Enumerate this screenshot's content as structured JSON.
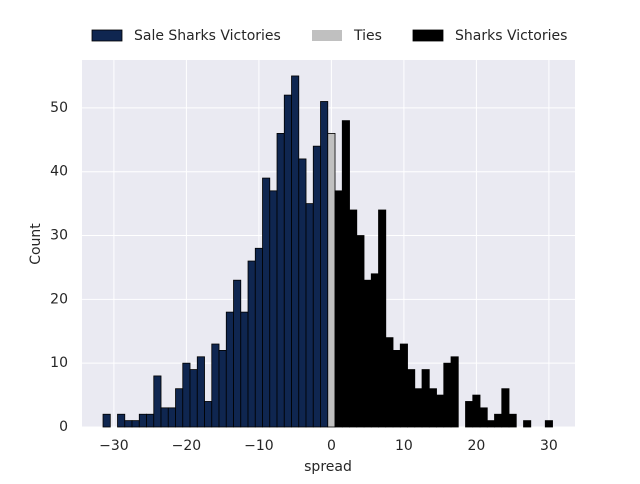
{
  "chart_data": {
    "type": "histogram",
    "xlabel": "spread",
    "ylabel": "Count",
    "xlim": [
      -34.4,
      33.6
    ],
    "ylim": [
      0,
      57.5
    ],
    "xticks": [
      {
        "value": -30,
        "label": "−30"
      },
      {
        "value": -20,
        "label": "−20"
      },
      {
        "value": -10,
        "label": "−10"
      },
      0,
      10,
      20,
      30
    ],
    "yticks": [
      0,
      10,
      20,
      30,
      40,
      50
    ],
    "grid": true,
    "legend": "top",
    "series": [
      {
        "name": "Sale Sharks Victories",
        "color": "#0f2650",
        "bins": [
          -31.5,
          -30.5,
          -29.5,
          -28.5,
          -27.5,
          -26.5,
          -25.5,
          -24.5,
          -23.5,
          -22.5,
          -21.5,
          -20.5,
          -19.5,
          -18.5,
          -17.5,
          -16.5,
          -15.5,
          -14.5,
          -13.5,
          -12.5,
          -11.5,
          -10.5,
          -9.5,
          -8.5,
          -7.5,
          -6.5,
          -5.5,
          -4.5,
          -3.5,
          -2.5,
          -1.5,
          -0.5
        ],
        "values": [
          2,
          0,
          2,
          1,
          1,
          2,
          2,
          8,
          3,
          3,
          6,
          10,
          9,
          11,
          4,
          13,
          12,
          18,
          23,
          18,
          26,
          28,
          39,
          37,
          46,
          52,
          55,
          42,
          35,
          44,
          51
        ]
      },
      {
        "name": "Ties",
        "color": "#c0c0c0",
        "bins": [
          -0.5,
          0.5
        ],
        "values": [
          46
        ]
      },
      {
        "name": "Sharks Victories",
        "color": "#000000",
        "bins": [
          0.5,
          1.5,
          2.5,
          3.5,
          4.5,
          5.5,
          6.5,
          7.5,
          8.5,
          9.5,
          10.5,
          11.5,
          12.5,
          13.5,
          14.5,
          15.5,
          16.5,
          17.5,
          18.5,
          19.5,
          20.5,
          21.5,
          22.5,
          23.5,
          24.5,
          25.5,
          26.5,
          27.5,
          28.5,
          29.5,
          30.5
        ],
        "values": [
          37,
          48,
          34,
          30,
          23,
          24,
          34,
          14,
          12,
          13,
          9,
          6,
          9,
          6,
          5,
          10,
          11,
          0,
          4,
          5,
          3,
          1,
          2,
          6,
          2,
          0,
          1,
          0,
          0,
          1
        ]
      }
    ]
  }
}
